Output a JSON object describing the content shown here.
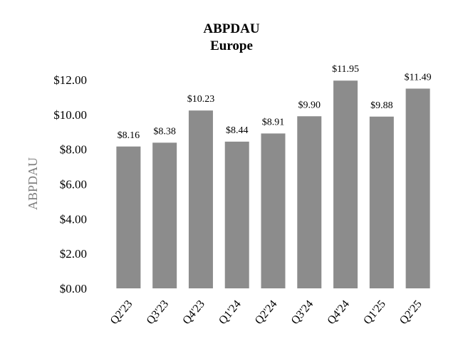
{
  "chart_data": {
    "type": "bar",
    "title": "ABPDAU",
    "subtitle": "Europe",
    "xlabel": "",
    "ylabel": "ABPDAU",
    "categories": [
      "Q2'23",
      "Q3'23",
      "Q4'23",
      "Q1'24",
      "Q2'24",
      "Q3'24",
      "Q4'24",
      "Q1'25",
      "Q2'25"
    ],
    "values": [
      8.16,
      8.38,
      10.23,
      8.44,
      8.91,
      9.9,
      11.95,
      9.88,
      11.49
    ],
    "data_labels": [
      "$8.16",
      "$8.38",
      "$10.23",
      "$8.44",
      "$8.91",
      "$9.90",
      "$11.95",
      "$9.88",
      "$11.49"
    ],
    "yticks": [
      0,
      2,
      4,
      6,
      8,
      10,
      12
    ],
    "ytick_labels": [
      "$0.00",
      "$2.00",
      "$4.00",
      "$6.00",
      "$8.00",
      "$10.00",
      "$12.00"
    ],
    "ylim": [
      0,
      12
    ],
    "grid": false,
    "legend": "none",
    "bar_color": "#8c8c8c"
  }
}
